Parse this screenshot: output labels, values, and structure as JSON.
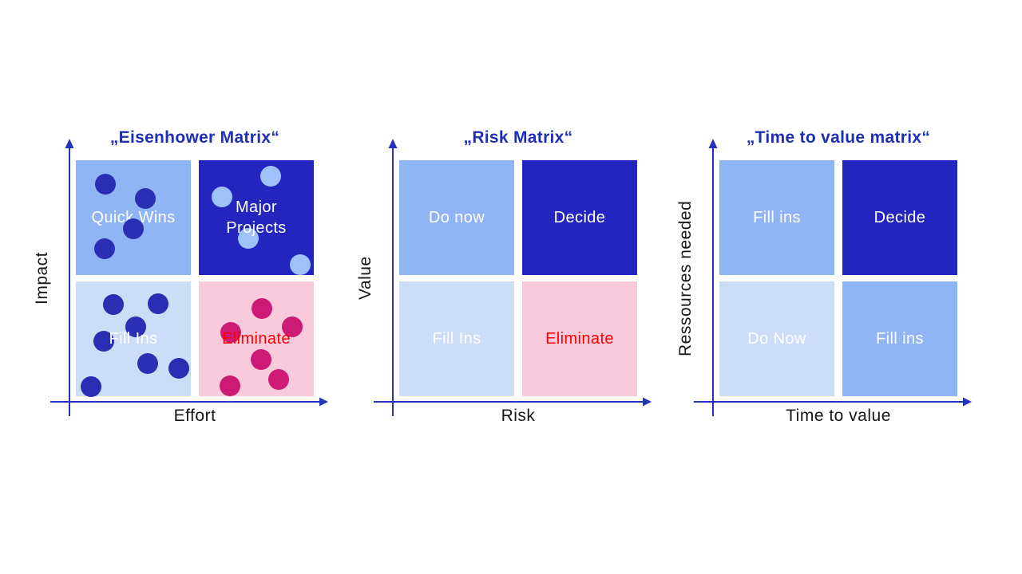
{
  "palette": {
    "background": "#FFFFFF",
    "title_blue": "#1F2FB4",
    "axis_blue": "#2233BE",
    "quadrant_medium_blue": "#90B5F5",
    "quadrant_dark_blue": "#2425BF",
    "quadrant_light_blue": "#CCDDF8",
    "quadrant_pink": "#F8CADC",
    "dot_dark_blue": "#2A2EB2",
    "dot_light_blue": "#9DC1F8",
    "dot_magenta": "#CC1A75",
    "eliminate_red": "#FF0000",
    "label_white": "#FFFFFF",
    "axis_label_black": "#161616"
  },
  "matrices": [
    {
      "id": "eisenhower",
      "title": "„Eisenhower Matrix“",
      "x_label": "Effort",
      "y_label": "Impact",
      "quadrants": [
        {
          "position": "top-left",
          "label": "Quick Wins",
          "bg": "#90B5F5",
          "text_color": "#FFFFFF",
          "dots_over_text": true,
          "dots": {
            "color": "#2A2EB2",
            "r": 13,
            "points": [
              [
                37,
                30
              ],
              [
                87,
                48
              ],
              [
                72,
                86
              ],
              [
                36,
                111
              ]
            ]
          }
        },
        {
          "position": "top-right",
          "label": "Major Projects",
          "bg": "#2425BF",
          "text_color": "#FFFFFF",
          "dots": {
            "color": "#9DC1F8",
            "r": 13,
            "points": [
              [
                90,
                20
              ],
              [
                29,
                46
              ],
              [
                62,
                98
              ],
              [
                127,
                131
              ]
            ]
          }
        },
        {
          "position": "bottom-left",
          "label": "Fill Ins",
          "bg": "#CCDDF8",
          "text_color": "#FFFFFF",
          "dots": {
            "color": "#2A2EB2",
            "r": 13,
            "points": [
              [
                47,
                29
              ],
              [
                103,
                28
              ],
              [
                75,
                57
              ],
              [
                35,
                75
              ],
              [
                90,
                103
              ],
              [
                129,
                109
              ],
              [
                19,
                132
              ]
            ]
          }
        },
        {
          "position": "bottom-right",
          "label": "Eliminate",
          "bg": "#F8CADC",
          "text_color": "#FF0000",
          "dots": {
            "color": "#CC1A75",
            "r": 13,
            "points": [
              [
                79,
                34
              ],
              [
                40,
                64
              ],
              [
                117,
                57
              ],
              [
                78,
                98
              ],
              [
                100,
                123
              ],
              [
                39,
                131
              ]
            ]
          }
        }
      ]
    },
    {
      "id": "risk",
      "title": "„Risk Matrix“",
      "x_label": "Risk",
      "y_label": "Value",
      "quadrants": [
        {
          "position": "top-left",
          "label": "Do now",
          "bg": "#90B5F5",
          "text_color": "#FFFFFF"
        },
        {
          "position": "top-right",
          "label": "Decide",
          "bg": "#2425BF",
          "text_color": "#FFFFFF"
        },
        {
          "position": "bottom-left",
          "label": "Fill Ins",
          "bg": "#CCDDF8",
          "text_color": "#FFFFFF"
        },
        {
          "position": "bottom-right",
          "label": "Eliminate",
          "bg": "#F8CADC",
          "text_color": "#FF0000"
        }
      ]
    },
    {
      "id": "time-to-value",
      "title": "„Time to value matrix“",
      "x_label": "Time to value",
      "y_label": "Ressources needed",
      "quadrants": [
        {
          "position": "top-left",
          "label": "Fill ins",
          "bg": "#90B5F5",
          "text_color": "#FFFFFF"
        },
        {
          "position": "top-right",
          "label": "Decide",
          "bg": "#2425BF",
          "text_color": "#FFFFFF"
        },
        {
          "position": "bottom-left",
          "label": "Do Now",
          "bg": "#CCDDF8",
          "text_color": "#FFFFFF"
        },
        {
          "position": "bottom-right",
          "label": "Fill ins",
          "bg": "#90B5F5",
          "text_color": "#FFFFFF"
        }
      ]
    }
  ]
}
